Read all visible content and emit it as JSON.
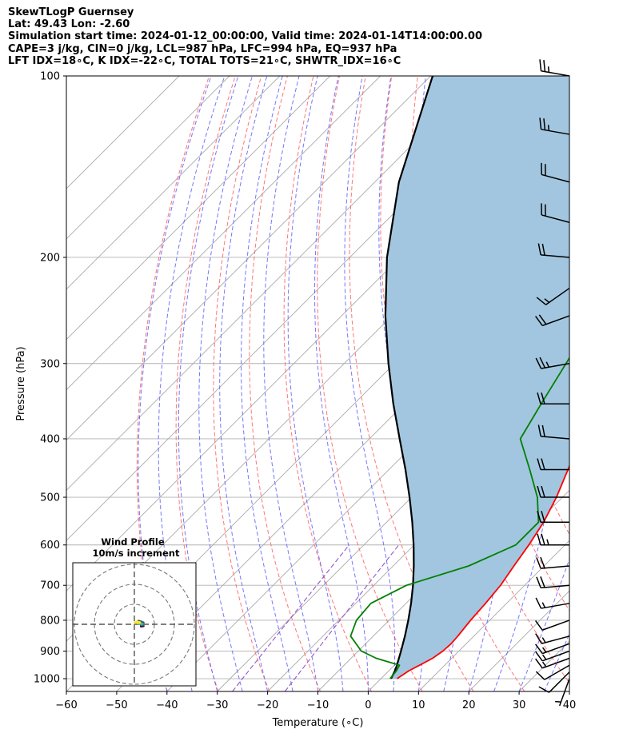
{
  "header": {
    "line1": "SkewTLogP Guernsey",
    "line2": "Lat: 49.43   Lon: -2.60",
    "line3": "Simulation start time: 2024-01-12_00:00:00, Valid time: 2024-01-14T14:00:00.00",
    "line4": "CAPE=3 j/kg, CIN=0 j/kg, LCL=987 hPa, LFC=994 hPa, EQ=937 hPa",
    "line5": "LFT IDX=18∘C, K IDX=-22∘C, TOTAL TOTS=21∘C, SHWTR_IDX=16∘C"
  },
  "chart_data": {
    "type": "line",
    "subtype": "skew-t log-p",
    "xlabel": "Temperature (∘C)",
    "ylabel": "Pressure (hPa)",
    "xlim": [
      -60,
      40
    ],
    "ylim": [
      1050,
      100
    ],
    "y_scale": "log",
    "x_ticks": [
      "−60",
      "−50",
      "−40",
      "−30",
      "−20",
      "−10",
      "0",
      "10",
      "20",
      "30",
      "40"
    ],
    "x_tick_values": [
      -60,
      -50,
      -40,
      -30,
      -20,
      -10,
      0,
      10,
      20,
      30,
      40
    ],
    "y_ticks": [
      "100",
      "200",
      "300",
      "400",
      "500",
      "600",
      "700",
      "800",
      "900",
      "1000"
    ],
    "y_tick_values": [
      100,
      200,
      300,
      400,
      500,
      600,
      700,
      800,
      900,
      1000
    ],
    "grid": true,
    "colors": {
      "temperature": "#ff0000",
      "dewpoint": "#008000",
      "parcel": "#000000",
      "cape_fill": "#a2c6df",
      "dry_adiabats": "#ff6666",
      "moist_adiabats": "#6666ff",
      "mixing_ratio": "#9955cc",
      "isotherms": "#aaaaaa"
    },
    "series": [
      {
        "name": "",
        "role": "temperature",
        "points": [
          [
            1000,
            3.2
          ],
          [
            970,
            4.0
          ],
          [
            950,
            5.0
          ],
          [
            925,
            6.2
          ],
          [
            900,
            6.8
          ],
          [
            875,
            7.0
          ],
          [
            850,
            6.8
          ],
          [
            800,
            6.2
          ],
          [
            750,
            5.8
          ],
          [
            700,
            5.2
          ],
          [
            650,
            4.0
          ],
          [
            600,
            2.8
          ],
          [
            550,
            1.2
          ],
          [
            500,
            -1.2
          ],
          [
            450,
            -4.4
          ],
          [
            400,
            -8.0
          ],
          [
            350,
            -12.4
          ],
          [
            300,
            -17.6
          ],
          [
            250,
            -23.8
          ],
          [
            220,
            -28.3
          ],
          [
            200,
            -30.4
          ],
          [
            180,
            -33.4
          ],
          [
            160,
            -37.5
          ],
          [
            140,
            -41.9
          ],
          [
            120,
            -46.8
          ],
          [
            100,
            -50.0
          ]
        ]
      },
      {
        "name": "",
        "role": "dewpoint",
        "points": [
          [
            1000,
            1.8
          ],
          [
            970,
            1.5
          ],
          [
            950,
            1.0
          ],
          [
            925,
            -5.0
          ],
          [
            900,
            -9.4
          ],
          [
            850,
            -14.5
          ],
          [
            800,
            -16.5
          ],
          [
            750,
            -17.0
          ],
          [
            700,
            -13.5
          ],
          [
            650,
            -5.0
          ],
          [
            600,
            0.2
          ],
          [
            550,
            0.2
          ],
          [
            500,
            -5.0
          ],
          [
            450,
            -12.0
          ],
          [
            400,
            -20.0
          ],
          [
            350,
            -22.8
          ],
          [
            300,
            -25.9
          ],
          [
            250,
            -29.6
          ],
          [
            220,
            -32.0
          ],
          [
            200,
            -34.0
          ],
          [
            180,
            -38.0
          ],
          [
            160,
            -42.5
          ],
          [
            140,
            -47.5
          ],
          [
            120,
            -53.5
          ],
          [
            100,
            -60.0
          ]
        ]
      },
      {
        "name": "",
        "role": "parcel",
        "points": [
          [
            1000,
            2.0
          ],
          [
            970,
            1.2
          ],
          [
            950,
            0.5
          ],
          [
            900,
            -1.5
          ],
          [
            850,
            -3.7
          ],
          [
            800,
            -6.2
          ],
          [
            750,
            -9.0
          ],
          [
            700,
            -12.2
          ],
          [
            650,
            -15.9
          ],
          [
            600,
            -20.1
          ],
          [
            550,
            -24.9
          ],
          [
            500,
            -30.4
          ],
          [
            450,
            -36.7
          ],
          [
            400,
            -44.0
          ],
          [
            350,
            -52.2
          ],
          [
            300,
            -61.2
          ],
          [
            250,
            -71.3
          ],
          [
            200,
            -82.6
          ],
          [
            150,
            -95.2
          ],
          [
            100,
            -109.6
          ]
        ]
      }
    ],
    "wind_barbs": {
      "pressures": [
        1000,
        975,
        950,
        925,
        900,
        875,
        850,
        800,
        750,
        700,
        650,
        600,
        550,
        500,
        450,
        400,
        350,
        300,
        250,
        225,
        200,
        175,
        150,
        125,
        100
      ],
      "speed_kt": [
        5,
        10,
        10,
        15,
        15,
        15,
        15,
        10,
        15,
        20,
        20,
        25,
        20,
        20,
        20,
        20,
        20,
        25,
        20,
        15,
        20,
        20,
        20,
        25,
        25
      ],
      "direction_deg": [
        200,
        225,
        240,
        250,
        250,
        250,
        255,
        250,
        260,
        265,
        265,
        270,
        270,
        270,
        270,
        275,
        270,
        260,
        250,
        235,
        275,
        285,
        285,
        280,
        280
      ]
    },
    "hodograph": {
      "title": "Wind Profile",
      "subtitle": "10m/s increment",
      "ring_spacing_ms": 10
    }
  }
}
